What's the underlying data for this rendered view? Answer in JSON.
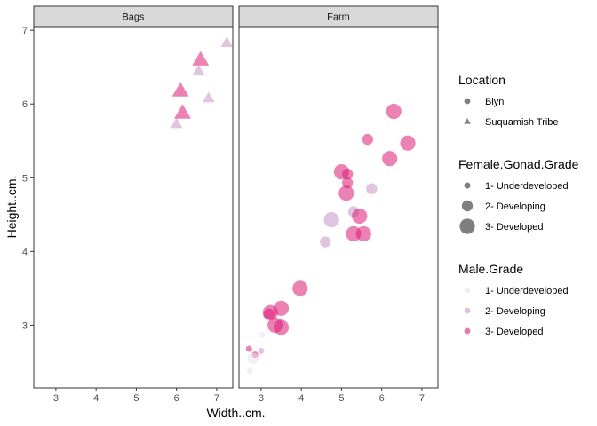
{
  "chart_data": {
    "type": "scatter",
    "title": "",
    "xlabel": "Width..cm.",
    "ylabel": "Height..cm.",
    "xlim": [
      2.45,
      7.4
    ],
    "ylim": [
      2.15,
      7.05
    ],
    "x_ticks": [
      3,
      4,
      5,
      6,
      7
    ],
    "y_ticks": [
      3,
      4,
      5,
      6,
      7
    ],
    "grid": false,
    "panels": [
      "Bags",
      "Farm"
    ],
    "legend_position": "right",
    "legends": [
      {
        "title": "Location",
        "kind": "shape",
        "items": [
          {
            "label": "Blyn",
            "shape": "circle"
          },
          {
            "label": "Suquamish Tribe",
            "shape": "triangle"
          }
        ]
      },
      {
        "title": "Female.Gonad.Grade",
        "kind": "size",
        "items": [
          {
            "label": "1- Underdeveloped",
            "grade": 1
          },
          {
            "label": "2- Developing",
            "grade": 2
          },
          {
            "label": "3- Developed",
            "grade": 3
          }
        ]
      },
      {
        "title": "Male.Grade",
        "kind": "color",
        "items": [
          {
            "label": "1- Underdeveloped",
            "color": "#e7e1ef"
          },
          {
            "label": "2- Developing",
            "color": "#c994c7"
          },
          {
            "label": "3- Developed",
            "color": "#dd1c77"
          }
        ]
      }
    ],
    "points": [
      {
        "panel": "Bags",
        "x": 6.6,
        "y": 6.6,
        "loc": "Suquamish Tribe",
        "fem": 3,
        "male": 3
      },
      {
        "panel": "Bags",
        "x": 6.1,
        "y": 6.18,
        "loc": "Suquamish Tribe",
        "fem": 3,
        "male": 3
      },
      {
        "panel": "Bags",
        "x": 6.15,
        "y": 5.88,
        "loc": "Suquamish Tribe",
        "fem": 3,
        "male": 3
      },
      {
        "panel": "Bags",
        "x": 7.25,
        "y": 6.83,
        "loc": "Suquamish Tribe",
        "fem": 2,
        "male": 2
      },
      {
        "panel": "Bags",
        "x": 6.8,
        "y": 6.08,
        "loc": "Suquamish Tribe",
        "fem": 2,
        "male": 2
      },
      {
        "panel": "Bags",
        "x": 6.55,
        "y": 6.45,
        "loc": "Suquamish Tribe",
        "fem": 2,
        "male": 2
      },
      {
        "panel": "Bags",
        "x": 6.0,
        "y": 5.73,
        "loc": "Suquamish Tribe",
        "fem": 2,
        "male": 2
      },
      {
        "panel": "Farm",
        "x": 6.3,
        "y": 5.9,
        "loc": "Blyn",
        "fem": 3,
        "male": 3
      },
      {
        "panel": "Farm",
        "x": 6.65,
        "y": 5.47,
        "loc": "Blyn",
        "fem": 3,
        "male": 3
      },
      {
        "panel": "Farm",
        "x": 5.65,
        "y": 5.52,
        "loc": "Blyn",
        "fem": 2,
        "male": 3
      },
      {
        "panel": "Farm",
        "x": 6.2,
        "y": 5.26,
        "loc": "Blyn",
        "fem": 3,
        "male": 3
      },
      {
        "panel": "Farm",
        "x": 5.0,
        "y": 5.08,
        "loc": "Blyn",
        "fem": 3,
        "male": 3
      },
      {
        "panel": "Farm",
        "x": 5.15,
        "y": 5.05,
        "loc": "Blyn",
        "fem": 2,
        "male": 3
      },
      {
        "panel": "Farm",
        "x": 5.15,
        "y": 4.93,
        "loc": "Blyn",
        "fem": 2,
        "male": 3
      },
      {
        "panel": "Farm",
        "x": 5.12,
        "y": 4.79,
        "loc": "Blyn",
        "fem": 3,
        "male": 3
      },
      {
        "panel": "Farm",
        "x": 5.75,
        "y": 4.85,
        "loc": "Blyn",
        "fem": 2,
        "male": 2
      },
      {
        "panel": "Farm",
        "x": 5.3,
        "y": 4.54,
        "loc": "Blyn",
        "fem": 2,
        "male": 2
      },
      {
        "panel": "Farm",
        "x": 4.75,
        "y": 4.43,
        "loc": "Blyn",
        "fem": 3,
        "male": 2
      },
      {
        "panel": "Farm",
        "x": 5.45,
        "y": 4.48,
        "loc": "Blyn",
        "fem": 3,
        "male": 3
      },
      {
        "panel": "Farm",
        "x": 5.3,
        "y": 4.24,
        "loc": "Blyn",
        "fem": 3,
        "male": 3
      },
      {
        "panel": "Farm",
        "x": 5.55,
        "y": 4.24,
        "loc": "Blyn",
        "fem": 3,
        "male": 3
      },
      {
        "panel": "Farm",
        "x": 4.6,
        "y": 4.13,
        "loc": "Blyn",
        "fem": 2,
        "male": 2
      },
      {
        "panel": "Farm",
        "x": 3.97,
        "y": 3.5,
        "loc": "Blyn",
        "fem": 3,
        "male": 3
      },
      {
        "panel": "Farm",
        "x": 3.5,
        "y": 3.23,
        "loc": "Blyn",
        "fem": 3,
        "male": 3
      },
      {
        "panel": "Farm",
        "x": 3.23,
        "y": 3.17,
        "loc": "Blyn",
        "fem": 3,
        "male": 3
      },
      {
        "panel": "Farm",
        "x": 3.2,
        "y": 3.15,
        "loc": "Blyn",
        "fem": 2,
        "male": 3
      },
      {
        "panel": "Farm",
        "x": 3.35,
        "y": 3.0,
        "loc": "Blyn",
        "fem": 3,
        "male": 3
      },
      {
        "panel": "Farm",
        "x": 3.5,
        "y": 2.97,
        "loc": "Blyn",
        "fem": 3,
        "male": 3
      },
      {
        "panel": "Farm",
        "x": 3.03,
        "y": 2.87,
        "loc": "Blyn",
        "fem": 1,
        "male": 1
      },
      {
        "panel": "Farm",
        "x": 3.0,
        "y": 2.65,
        "loc": "Blyn",
        "fem": 1,
        "male": 2
      },
      {
        "panel": "Farm",
        "x": 2.85,
        "y": 2.6,
        "loc": "Blyn",
        "fem": 1,
        "male": 3
      },
      {
        "panel": "Farm",
        "x": 2.8,
        "y": 2.55,
        "loc": "Blyn",
        "fem": 2,
        "male": 1
      },
      {
        "panel": "Farm",
        "x": 2.7,
        "y": 2.68,
        "loc": "Blyn",
        "fem": 1,
        "male": 3
      },
      {
        "panel": "Farm",
        "x": 2.72,
        "y": 2.38,
        "loc": "Blyn",
        "fem": 1,
        "male": 1
      }
    ]
  }
}
